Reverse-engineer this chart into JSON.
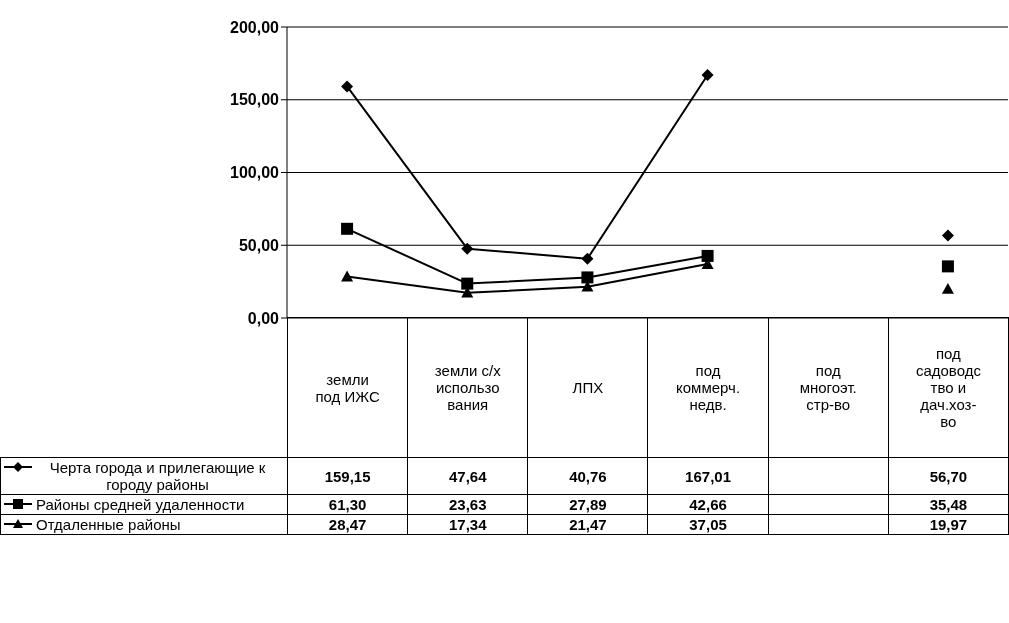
{
  "chart_data": {
    "type": "line",
    "categories": [
      "земли\nпод ИЖС",
      "земли с/х\nиспользо\nвания",
      "ЛПХ",
      "под\nкоммерч.\nнедв.",
      "под\nмногоэт.\nстр-во",
      "под\nсадоводс\nтво и\nдач.хоз-\nво"
    ],
    "series": [
      {
        "name": "Черта города и прилегающие к городу районы",
        "color": "#000000",
        "marker": "diamond",
        "values": [
          159.15,
          47.64,
          40.76,
          167.01,
          null,
          56.7
        ],
        "value_labels": [
          "159,15",
          "47,64",
          "40,76",
          "167,01",
          null,
          "56,70"
        ]
      },
      {
        "name": "Районы средней удаленности",
        "color": "#000000",
        "marker": "square",
        "values": [
          61.3,
          23.63,
          27.89,
          42.66,
          null,
          35.48
        ],
        "value_labels": [
          "61,30",
          "23,63",
          "27,89",
          "42,66",
          null,
          "35,48"
        ]
      },
      {
        "name": "Отдаленные районы",
        "color": "#000000",
        "marker": "triangle",
        "values": [
          28.47,
          17.34,
          21.47,
          37.05,
          null,
          19.97
        ],
        "value_labels": [
          "28,47",
          "17,34",
          "21,47",
          "37,05",
          null,
          "19,97"
        ]
      }
    ],
    "ylim": [
      0,
      200
    ],
    "yticks": [
      {
        "value": 0,
        "label": "0,00"
      },
      {
        "value": 50,
        "label": "50,00"
      },
      {
        "value": 100,
        "label": "100,00"
      },
      {
        "value": 150,
        "label": "150,00"
      },
      {
        "value": 200,
        "label": "200,00"
      }
    ],
    "grid": "y",
    "legend": "bottom left",
    "line_style": "solid"
  }
}
